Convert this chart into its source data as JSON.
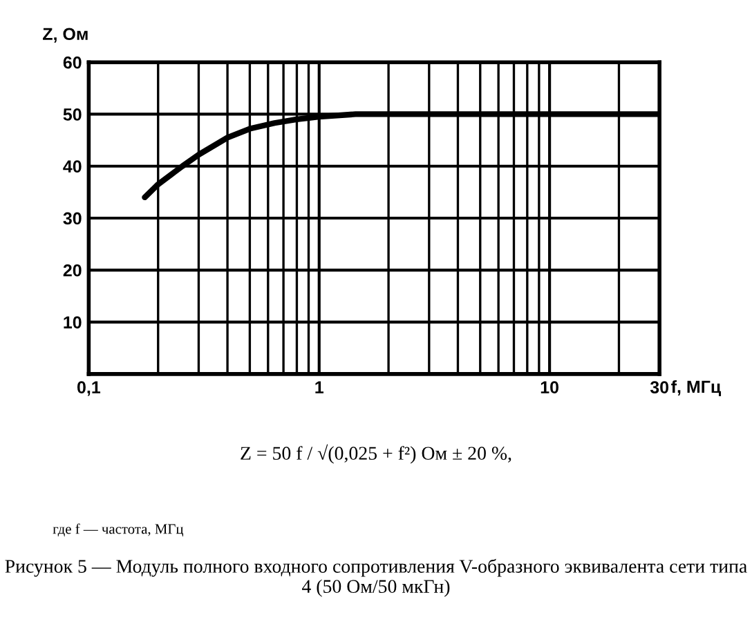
{
  "chart_data": {
    "type": "line",
    "ylabel": "Z, Ом",
    "xlabel": "f, МГц",
    "x": [
      0.175,
      0.2,
      0.255,
      0.3,
      0.4,
      0.5,
      0.64,
      0.8,
      1,
      1.44,
      30
    ],
    "series": [
      {
        "color": "#000000",
        "values": [
          34,
          36.5,
          40,
          42.2,
          45.5,
          47.2,
          48.3,
          49,
          49.5,
          50,
          50
        ]
      }
    ],
    "log": "x",
    "xlim": [
      0.1,
      30
    ],
    "ylim": [
      0,
      60
    ],
    "xticks": [
      {
        "value": 0.1,
        "label": "0,1"
      },
      1,
      10,
      30
    ],
    "yticks": [
      10,
      20,
      30,
      40,
      50,
      60
    ],
    "grid": true,
    "legend": false,
    "annotations": [
      "Z = 50 f / √(0,025 + f²) Ом ± 20 %,",
      "где f — частота, МГц",
      "Рисунок 5 — Модуль полного входного сопротивления V-образного эквивалента сети типа 4 (50 Ом/50 мкГн)"
    ]
  }
}
